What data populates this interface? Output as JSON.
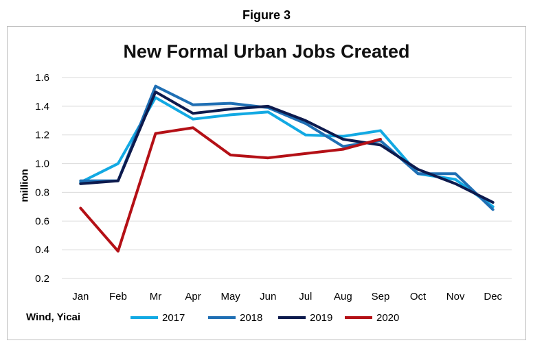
{
  "figure_label": "Figure 3",
  "source_label": "Wind, Yicai",
  "chart_data": {
    "type": "line",
    "title": "New Formal Urban Jobs Created",
    "ylabel": "million",
    "xlabel": "",
    "ylim": [
      0.2,
      1.6
    ],
    "yticks": [
      "0.2",
      "0.4",
      "0.6",
      "0.8",
      "1.0",
      "1.2",
      "1.4",
      "1.6"
    ],
    "grid": true,
    "legend": "bottom",
    "categories": [
      "Jan",
      "Feb",
      "Mr",
      "Apr",
      "May",
      "Jun",
      "Jul",
      "Aug",
      "Sep",
      "Oct",
      "Nov",
      "Dec"
    ],
    "series": [
      {
        "name": "2017",
        "color": "#12a9e3",
        "values": [
          0.87,
          1.0,
          1.46,
          1.31,
          1.34,
          1.36,
          1.2,
          1.19,
          1.23,
          0.93,
          0.89,
          0.7
        ]
      },
      {
        "name": "2018",
        "color": "#1f6fb4",
        "values": [
          0.88,
          0.88,
          1.54,
          1.41,
          1.42,
          1.39,
          1.28,
          1.12,
          1.16,
          0.93,
          0.93,
          0.68
        ]
      },
      {
        "name": "2019",
        "color": "#0d1a4d",
        "values": [
          0.86,
          0.88,
          1.5,
          1.35,
          1.38,
          1.4,
          1.3,
          1.17,
          1.13,
          0.96,
          0.86,
          0.73
        ]
      },
      {
        "name": "2020",
        "color": "#b41016",
        "values": [
          0.69,
          0.39,
          1.21,
          1.25,
          1.06,
          1.04,
          1.07,
          1.1,
          1.17,
          null,
          null,
          null
        ]
      }
    ]
  }
}
